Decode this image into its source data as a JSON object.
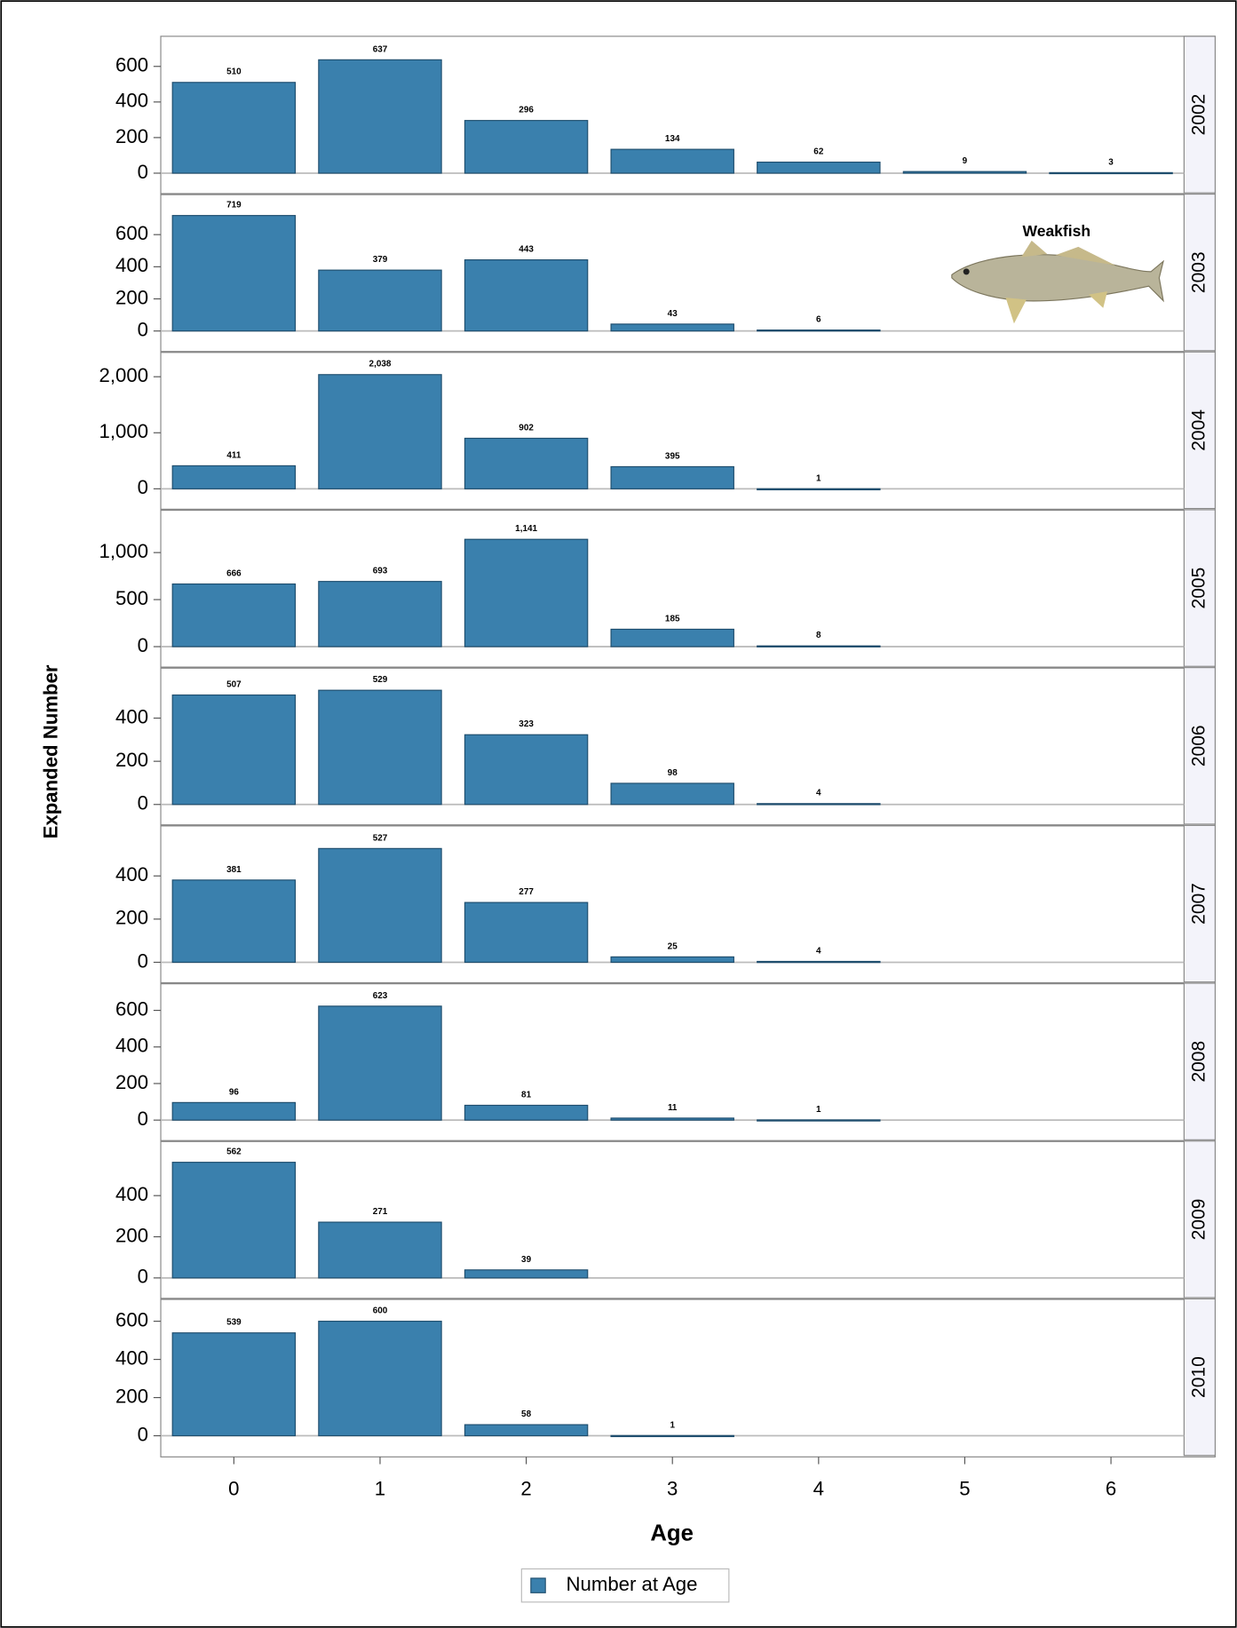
{
  "chart_data": {
    "type": "bar",
    "y_label": "Expanded Number",
    "x_label": "Age",
    "categories": [
      "0",
      "1",
      "2",
      "3",
      "4",
      "5",
      "6"
    ],
    "series": [
      {
        "name": "Number at Age",
        "color": "#3a80ad"
      }
    ],
    "annotation": "Weakfish",
    "panels": [
      {
        "label": "2002",
        "values": [
          510,
          637,
          296,
          134,
          62,
          9,
          3
        ],
        "value_labels": [
          "510",
          "637",
          "296",
          "134",
          "62",
          "9",
          "3"
        ],
        "ylim": [
          0,
          740
        ],
        "yticks": [
          0,
          200,
          400,
          600
        ]
      },
      {
        "label": "2003",
        "values": [
          719,
          379,
          443,
          43,
          6,
          null,
          null
        ],
        "value_labels": [
          "719",
          "379",
          "443",
          "43",
          "6",
          null,
          null
        ],
        "ylim": [
          0,
          820
        ],
        "yticks": [
          0,
          200,
          400,
          600
        ]
      },
      {
        "label": "2004",
        "values": [
          411,
          2038,
          902,
          395,
          1,
          null,
          null
        ],
        "value_labels": [
          "411",
          "2,038",
          "902",
          "395",
          "1",
          null,
          null
        ],
        "ylim": [
          0,
          2350
        ],
        "yticks": [
          0,
          {
            "value": 1000,
            "label": "1,000"
          },
          {
            "value": 2000,
            "label": "2,000"
          }
        ]
      },
      {
        "label": "2005",
        "values": [
          666,
          693,
          1141,
          185,
          8,
          null,
          null
        ],
        "value_labels": [
          "666",
          "693",
          "1,141",
          "185",
          "8",
          null,
          null
        ],
        "ylim": [
          0,
          1400
        ],
        "yticks": [
          0,
          500,
          {
            "value": 1000,
            "label": "1,000"
          }
        ]
      },
      {
        "label": "2006",
        "values": [
          507,
          529,
          323,
          98,
          4,
          null,
          null
        ],
        "value_labels": [
          "507",
          "529",
          "323",
          "98",
          "4",
          null,
          null
        ],
        "ylim": [
          0,
          610
        ],
        "yticks": [
          0,
          200,
          400
        ]
      },
      {
        "label": "2007",
        "values": [
          381,
          527,
          277,
          25,
          4,
          null,
          null
        ],
        "value_labels": [
          "381",
          "527",
          "277",
          "25",
          "4",
          null,
          null
        ],
        "ylim": [
          0,
          610
        ],
        "yticks": [
          0,
          200,
          400
        ]
      },
      {
        "label": "2008",
        "values": [
          96,
          623,
          81,
          11,
          1,
          null,
          null
        ],
        "value_labels": [
          "96",
          "623",
          "81",
          "11",
          "1",
          null,
          null
        ],
        "ylim": [
          0,
          720
        ],
        "yticks": [
          0,
          200,
          400,
          600
        ]
      },
      {
        "label": "2009",
        "values": [
          562,
          271,
          39,
          null,
          null,
          null,
          null
        ],
        "value_labels": [
          "562",
          "271",
          "39",
          null,
          null,
          null,
          null
        ],
        "ylim": [
          0,
          640
        ],
        "yticks": [
          0,
          200,
          400
        ]
      },
      {
        "label": "2010",
        "values": [
          539,
          600,
          58,
          1,
          null,
          null,
          null
        ],
        "value_labels": [
          "539",
          "600",
          "58",
          "1",
          null,
          null,
          null
        ],
        "ylim": [
          0,
          690
        ],
        "yticks": [
          0,
          200,
          400,
          600
        ]
      }
    ]
  }
}
